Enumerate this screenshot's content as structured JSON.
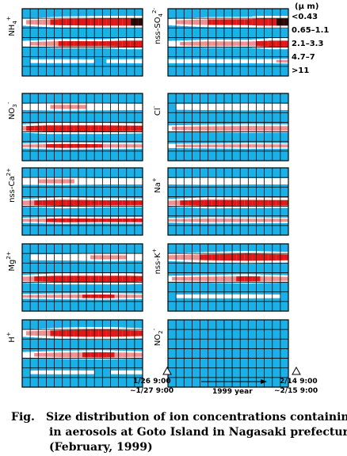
{
  "chart_data": [
    {
      "type": "heatmap",
      "ion": "NH4+",
      "ion_base": "NH",
      "ion_sub": "4",
      "ion_sup": "+",
      "bands": [
        [
          0.1,
          0.45,
          0.55,
          0.9
        ],
        [
          0.05,
          0.4,
          0.35,
          0.7
        ],
        [
          0.0,
          0.05,
          0.0,
          0.1
        ]
      ]
    },
    {
      "type": "heatmap",
      "ion": "nss-SO42-",
      "ion_base": "nss-SO",
      "ion_sub": "4",
      "ion_sup": "2-",
      "bands": [
        [
          0.05,
          0.35,
          0.4,
          0.95
        ],
        [
          0.05,
          0.3,
          0.25,
          0.8
        ],
        [
          0.05,
          0.1,
          0.05,
          0.15
        ]
      ]
    },
    {
      "type": "heatmap",
      "ion": "NO3-",
      "ion_base": "NO",
      "ion_sub": "3",
      "ion_sup": "-",
      "bands": [
        [
          0.05,
          0.15,
          0.1,
          0.05
        ],
        [
          0.3,
          0.7,
          0.55,
          0.45
        ],
        [
          0.2,
          0.45,
          0.35,
          0.3
        ]
      ]
    },
    {
      "type": "heatmap",
      "ion": "Cl-",
      "ion_base": "Cl",
      "ion_sub": "",
      "ion_sup": "-",
      "bands": [
        [
          0.0,
          0.05,
          0.1,
          0.05
        ],
        [
          0.1,
          0.25,
          0.35,
          0.3
        ],
        [
          0.1,
          0.2,
          0.3,
          0.25
        ]
      ]
    },
    {
      "type": "heatmap",
      "ion": "nss-Ca2+",
      "ion_base": "nss-Ca",
      "ion_sub": "",
      "ion_sup": "2+",
      "bands": [
        [
          0.1,
          0.15,
          0.05,
          0.05
        ],
        [
          0.25,
          0.55,
          0.4,
          0.35
        ],
        [
          0.2,
          0.45,
          0.35,
          0.4
        ]
      ]
    },
    {
      "type": "heatmap",
      "ion": "Na+",
      "ion_base": "Na",
      "ion_sub": "",
      "ion_sup": "+",
      "bands": [
        [
          0.05,
          0.1,
          0.05,
          0.05
        ],
        [
          0.25,
          0.55,
          0.5,
          0.45
        ],
        [
          0.15,
          0.35,
          0.3,
          0.25
        ]
      ]
    },
    {
      "type": "heatmap",
      "ion": "Mg2+",
      "ion_base": "Mg",
      "ion_sub": "",
      "ion_sup": "2+",
      "bands": [
        [
          0.0,
          0.05,
          0.15,
          0.1
        ],
        [
          0.25,
          0.6,
          0.75,
          0.45
        ],
        [
          0.15,
          0.3,
          0.4,
          0.25
        ]
      ]
    },
    {
      "type": "heatmap",
      "ion": "nss-K+",
      "ion_base": "nss-K",
      "ion_sub": "",
      "ion_sup": "+",
      "bands": [
        [
          0.15,
          0.4,
          0.55,
          0.4
        ],
        [
          0.1,
          0.25,
          0.4,
          0.2
        ],
        [
          0.0,
          0.05,
          0.05,
          0.0
        ]
      ]
    },
    {
      "type": "heatmap",
      "ion": "H+",
      "ion_base": "H",
      "ion_sub": "",
      "ion_sup": "+",
      "bands": [
        [
          0.1,
          0.45,
          0.6,
          0.35
        ],
        [
          0.05,
          0.3,
          0.4,
          0.2
        ],
        [
          0.0,
          0.05,
          0.0,
          0.05
        ]
      ]
    },
    {
      "type": "heatmap",
      "ion": "NO2-",
      "ion_base": "NO",
      "ion_sub": "2",
      "ion_sup": "-",
      "bands": [
        [
          0,
          0,
          0,
          0
        ],
        [
          0,
          0,
          0,
          0
        ],
        [
          0,
          0,
          0,
          0
        ]
      ]
    }
  ],
  "size_axis": {
    "unit": "(μ m)",
    "labels": [
      "<0.43",
      "0.65–1.1",
      "2.1–3.3",
      "4.7–7",
      ">11"
    ]
  },
  "time_axis": {
    "start_line1": "1/26  9:00",
    "start_line2": "~1/27  9:00",
    "end_line1": "2/14  9:00",
    "end_line2": "~2/15  9:00",
    "period_label": "1999 year"
  },
  "colors": {
    "background": "#1ab0e8",
    "grid": "#000000",
    "low": "#ffffff",
    "mid": "#ee9090",
    "high": "#e01818",
    "peak": "#300808"
  },
  "caption": {
    "prefix": "Fig.",
    "line1": "Size distribution of ion concentrations containing",
    "line2": "in aerosols at Goto Island in Nagasaki prefecture.",
    "line3": "(February, 1999)"
  }
}
